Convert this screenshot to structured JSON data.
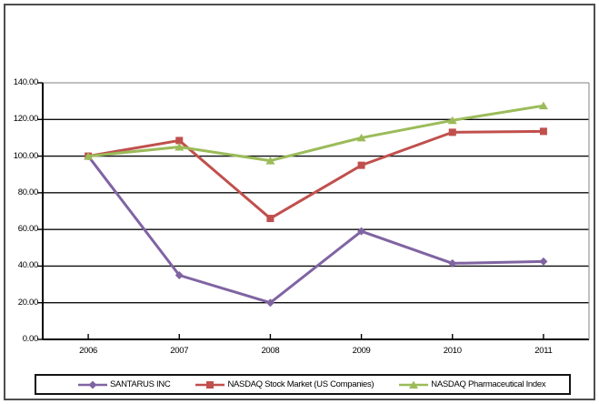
{
  "chart_data": {
    "type": "line",
    "categories": [
      "2006",
      "2007",
      "2008",
      "2009",
      "2010",
      "2011"
    ],
    "series": [
      {
        "name": "SANTARUS INC",
        "color": "#8064A2",
        "marker": "diamond",
        "values": [
          100.0,
          35.0,
          20.0,
          59.0,
          41.5,
          42.5
        ]
      },
      {
        "name": "NASDAQ Stock Market (US Companies)",
        "color": "#C0504D",
        "marker": "square",
        "values": [
          100.0,
          108.5,
          66.0,
          95.0,
          113.0,
          113.5
        ]
      },
      {
        "name": "NASDAQ Pharmaceutical Index",
        "color": "#9BBB59",
        "marker": "triangle",
        "values": [
          100.0,
          105.0,
          97.5,
          110.0,
          119.5,
          127.5
        ]
      }
    ],
    "title": "",
    "xlabel": "",
    "ylabel": "",
    "ylim": [
      0,
      140
    ],
    "ytick_step": 20,
    "ytick_labels": [
      "0.00",
      "20.00",
      "40.00",
      "60.00",
      "80.00",
      "100.00",
      "120.00",
      "140.00"
    ],
    "grid": true,
    "gridline_color": "#0d0d0d",
    "plot_border_color": "#9a9a9a",
    "axis_color": "#000000",
    "legend_position": "bottom",
    "legend_border_color": "#141414"
  }
}
